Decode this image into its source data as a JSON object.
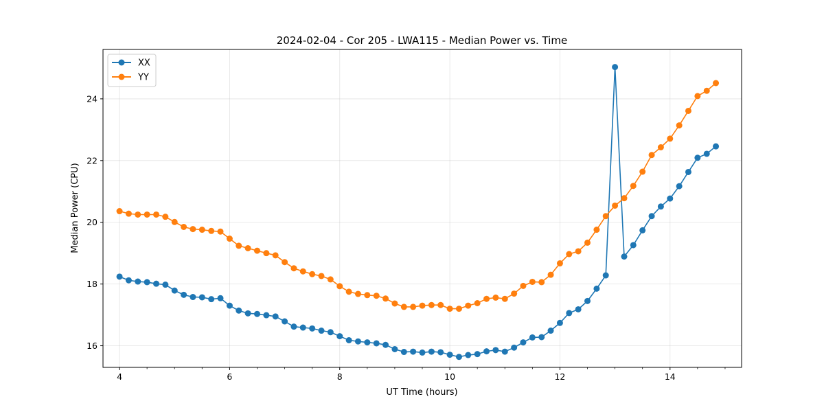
{
  "chart_data": {
    "type": "line",
    "title": "2024-02-04 - Cor 205 - LWA115 - Median Power vs. Time",
    "xlabel": "UT Time (hours)",
    "ylabel": "Median Power (CPU)",
    "xlim": [
      3.7,
      15.3
    ],
    "ylim": [
      15.3,
      25.6
    ],
    "xticks": [
      4,
      6,
      8,
      10,
      12,
      14
    ],
    "yticks": [
      16,
      18,
      20,
      22,
      24
    ],
    "grid": true,
    "legend_position": "upper-left",
    "x": [
      4.0,
      4.167,
      4.333,
      4.5,
      4.667,
      4.833,
      5.0,
      5.167,
      5.333,
      5.5,
      5.667,
      5.833,
      6.0,
      6.167,
      6.333,
      6.5,
      6.667,
      6.833,
      7.0,
      7.167,
      7.333,
      7.5,
      7.667,
      7.833,
      8.0,
      8.167,
      8.333,
      8.5,
      8.667,
      8.833,
      9.0,
      9.167,
      9.333,
      9.5,
      9.667,
      9.833,
      10.0,
      10.167,
      10.333,
      10.5,
      10.667,
      10.833,
      11.0,
      11.167,
      11.333,
      11.5,
      11.667,
      11.833,
      12.0,
      12.167,
      12.333,
      12.5,
      12.667,
      12.833,
      13.0,
      13.167,
      13.333,
      13.5,
      13.667,
      13.833,
      14.0,
      14.167,
      14.333,
      14.5,
      14.667,
      14.833
    ],
    "series": [
      {
        "name": "XX",
        "color": "#1f77b4",
        "values": [
          18.24,
          18.12,
          18.08,
          18.06,
          18.01,
          17.98,
          17.79,
          17.65,
          17.58,
          17.57,
          17.51,
          17.54,
          17.3,
          17.14,
          17.05,
          17.03,
          16.99,
          16.95,
          16.79,
          16.62,
          16.59,
          16.56,
          16.49,
          16.44,
          16.31,
          16.18,
          16.14,
          16.11,
          16.08,
          16.03,
          15.89,
          15.8,
          15.81,
          15.78,
          15.81,
          15.79,
          15.71,
          15.64,
          15.7,
          15.73,
          15.82,
          15.86,
          15.81,
          15.94,
          16.11,
          16.27,
          16.28,
          16.49,
          16.74,
          17.06,
          17.18,
          17.45,
          17.85,
          18.28,
          25.03,
          18.89,
          19.26,
          19.74,
          20.2,
          20.51,
          20.77,
          21.17,
          21.63,
          22.09,
          22.22,
          22.46
        ]
      },
      {
        "name": "YY",
        "color": "#ff7f0e",
        "values": [
          20.36,
          20.28,
          20.25,
          20.25,
          20.25,
          20.18,
          20.01,
          19.85,
          19.78,
          19.76,
          19.72,
          19.7,
          19.47,
          19.24,
          19.16,
          19.08,
          19.0,
          18.93,
          18.71,
          18.51,
          18.41,
          18.32,
          18.26,
          18.15,
          17.93,
          17.75,
          17.68,
          17.64,
          17.62,
          17.53,
          17.37,
          17.26,
          17.26,
          17.3,
          17.32,
          17.32,
          17.2,
          17.2,
          17.3,
          17.38,
          17.52,
          17.56,
          17.52,
          17.69,
          17.94,
          18.07,
          18.06,
          18.3,
          18.67,
          18.97,
          19.06,
          19.34,
          19.76,
          20.2,
          20.54,
          20.78,
          21.18,
          21.64,
          22.18,
          22.43,
          22.71,
          23.14,
          23.61,
          24.09,
          24.26,
          24.51
        ]
      }
    ]
  }
}
